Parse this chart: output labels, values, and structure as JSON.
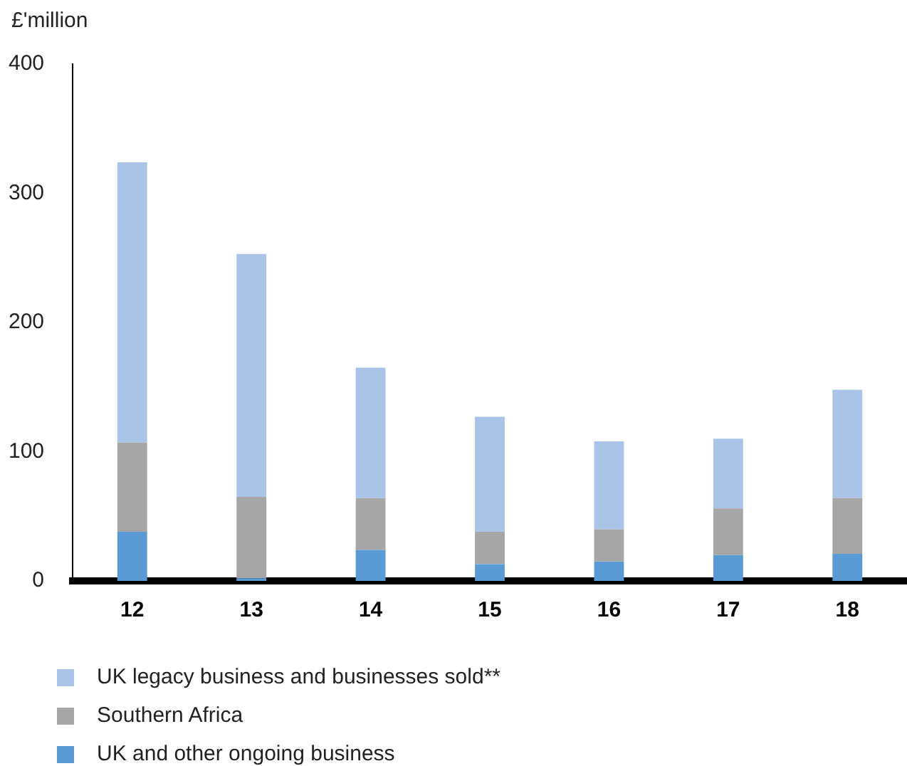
{
  "chart_data": {
    "type": "bar",
    "ylabel": "£'million",
    "categories": [
      "12",
      "13",
      "14",
      "15",
      "16",
      "17",
      "18"
    ],
    "stacked": true,
    "ylim": [
      0,
      400
    ],
    "yticks": [
      0,
      100,
      200,
      300,
      400
    ],
    "grid": false,
    "legend": "bottom",
    "series": [
      {
        "name": "UK and other ongoing business",
        "color": "#5b9bd5",
        "values": [
          38,
          2,
          24,
          13,
          15,
          20,
          21
        ]
      },
      {
        "name": "Southern Africa",
        "color": "#a6a6a6",
        "values": [
          69,
          63,
          40,
          25,
          25,
          36,
          43
        ]
      },
      {
        "name": "UK legacy business and businesses sold**",
        "color": "#a9c4e6",
        "values": [
          217,
          188,
          101,
          89,
          68,
          54,
          84
        ]
      }
    ]
  }
}
